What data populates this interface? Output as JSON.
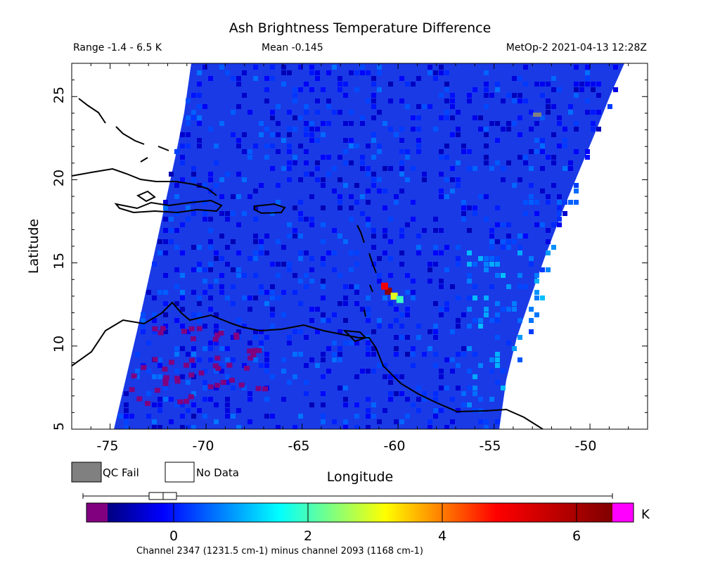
{
  "header": {
    "title": "Ash Brightness Temperature Difference",
    "range": "Range -1.4 - 6.5 K",
    "mean": "Mean -0.145",
    "satellite_time": "MetOp-2 2021-04-13 12:28Z"
  },
  "axes": {
    "xlabel": "Longitude",
    "ylabel": "Latitude",
    "xticks": [
      "-75",
      "-70",
      "-65",
      "-60",
      "-55",
      "-50"
    ],
    "yticks": [
      "5",
      "10",
      "15",
      "20",
      "25"
    ]
  },
  "legend": {
    "qc_fail": "QC Fail",
    "no_data": "No Data",
    "qc_fail_color": "#808080",
    "no_data_color": "#ffffff"
  },
  "colorbar": {
    "unit": "K",
    "ticks": [
      "0",
      "2",
      "4",
      "6"
    ],
    "caption": "Channel 2347 (1231.5 cm-1) minus channel 2093 (1168 cm-1)",
    "below_color": "#800080",
    "above_color": "#ff00ff",
    "range": [
      -1.4,
      6.5
    ]
  },
  "chart_data": {
    "type": "heatmap",
    "title": "Ash Brightness Temperature Difference",
    "xlabel": "Longitude",
    "ylabel": "Latitude",
    "xlim": [
      -77,
      -47
    ],
    "ylim": [
      5,
      27
    ],
    "value_range": [
      -1.4,
      6.5
    ],
    "mean": -0.145,
    "unit": "K",
    "features": [
      {
        "label": "ash plume",
        "lon": -60.5,
        "lat": 13.3,
        "value": 6.3
      },
      {
        "label": "ash plume",
        "lon": -60.7,
        "lat": 13.6,
        "value": 5.0
      },
      {
        "label": "ash plume",
        "lon": -60.2,
        "lat": 13.0,
        "value": 3.0
      },
      {
        "label": "ash plume",
        "lon": -59.9,
        "lat": 12.8,
        "value": 2.0
      }
    ]
  }
}
